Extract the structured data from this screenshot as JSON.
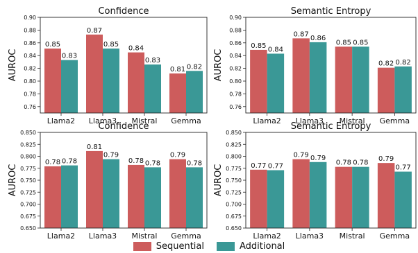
{
  "colors": {
    "sequential": "#cd5c5c",
    "additional": "#3a9896"
  },
  "legend": {
    "sequential_label": "Sequential",
    "additional_label": "Additional",
    "placement": "bottom-center"
  },
  "chart_data": [
    {
      "type": "bar",
      "title": "Confidence",
      "ylabel": "AUROC",
      "xlabel": "",
      "categories": [
        "Llama2",
        "Llama3",
        "Mistral",
        "Gemma"
      ],
      "ylim": [
        0.75,
        0.9
      ],
      "yticks": [
        "0.76",
        "0.78",
        "0.80",
        "0.82",
        "0.84",
        "0.86",
        "0.88",
        "0.90"
      ],
      "grid": false,
      "series": [
        {
          "name": "Sequential",
          "values": [
            0.851,
            0.873,
            0.845,
            0.812
          ],
          "labels": [
            "0.85",
            "0.87",
            "0.84",
            "0.81"
          ]
        },
        {
          "name": "Additional",
          "values": [
            0.833,
            0.851,
            0.826,
            0.816
          ],
          "labels": [
            "0.83",
            "0.85",
            "0.83",
            "0.82"
          ]
        }
      ]
    },
    {
      "type": "bar",
      "title": "Semantic Entropy",
      "ylabel": "AUROC",
      "xlabel": "",
      "categories": [
        "Llama2",
        "Llama3",
        "Mistral",
        "Gemma"
      ],
      "ylim": [
        0.75,
        0.9
      ],
      "yticks": [
        "0.76",
        "0.78",
        "0.80",
        "0.82",
        "0.84",
        "0.86",
        "0.88",
        "0.90"
      ],
      "grid": false,
      "series": [
        {
          "name": "Sequential",
          "values": [
            0.849,
            0.867,
            0.854,
            0.821
          ],
          "labels": [
            "0.85",
            "0.87",
            "0.85",
            "0.82"
          ]
        },
        {
          "name": "Additional",
          "values": [
            0.843,
            0.861,
            0.854,
            0.823
          ],
          "labels": [
            "0.84",
            "0.86",
            "0.85",
            "0.82"
          ]
        }
      ]
    },
    {
      "type": "bar",
      "title": "Confidence",
      "ylabel": "AUROC",
      "xlabel": "",
      "categories": [
        "Llama2",
        "Llama3",
        "Mistral",
        "Gemma"
      ],
      "ylim": [
        0.65,
        0.85
      ],
      "yticks": [
        "0.650",
        "0.675",
        "0.700",
        "0.725",
        "0.750",
        "0.775",
        "0.800",
        "0.825",
        "0.850"
      ],
      "grid": false,
      "series": [
        {
          "name": "Sequential",
          "values": [
            0.779,
            0.811,
            0.782,
            0.794
          ],
          "labels": [
            "0.78",
            "0.81",
            "0.78",
            "0.79"
          ]
        },
        {
          "name": "Additional",
          "values": [
            0.781,
            0.794,
            0.777,
            0.777
          ],
          "labels": [
            "0.78",
            "0.79",
            "0.78",
            "0.78"
          ]
        }
      ]
    },
    {
      "type": "bar",
      "title": "Semantic Entropy",
      "ylabel": "AUROC",
      "xlabel": "",
      "categories": [
        "Llama2",
        "Llama3",
        "Mistral",
        "Gemma"
      ],
      "ylim": [
        0.65,
        0.85
      ],
      "yticks": [
        "0.650",
        "0.675",
        "0.700",
        "0.725",
        "0.750",
        "0.775",
        "0.800",
        "0.825",
        "0.850"
      ],
      "grid": false,
      "series": [
        {
          "name": "Sequential",
          "values": [
            0.772,
            0.794,
            0.778,
            0.786
          ],
          "labels": [
            "0.77",
            "0.79",
            "0.78",
            "0.79"
          ]
        },
        {
          "name": "Additional",
          "values": [
            0.771,
            0.788,
            0.778,
            0.768
          ],
          "labels": [
            "0.77",
            "0.79",
            "0.78",
            "0.77"
          ]
        }
      ]
    }
  ]
}
